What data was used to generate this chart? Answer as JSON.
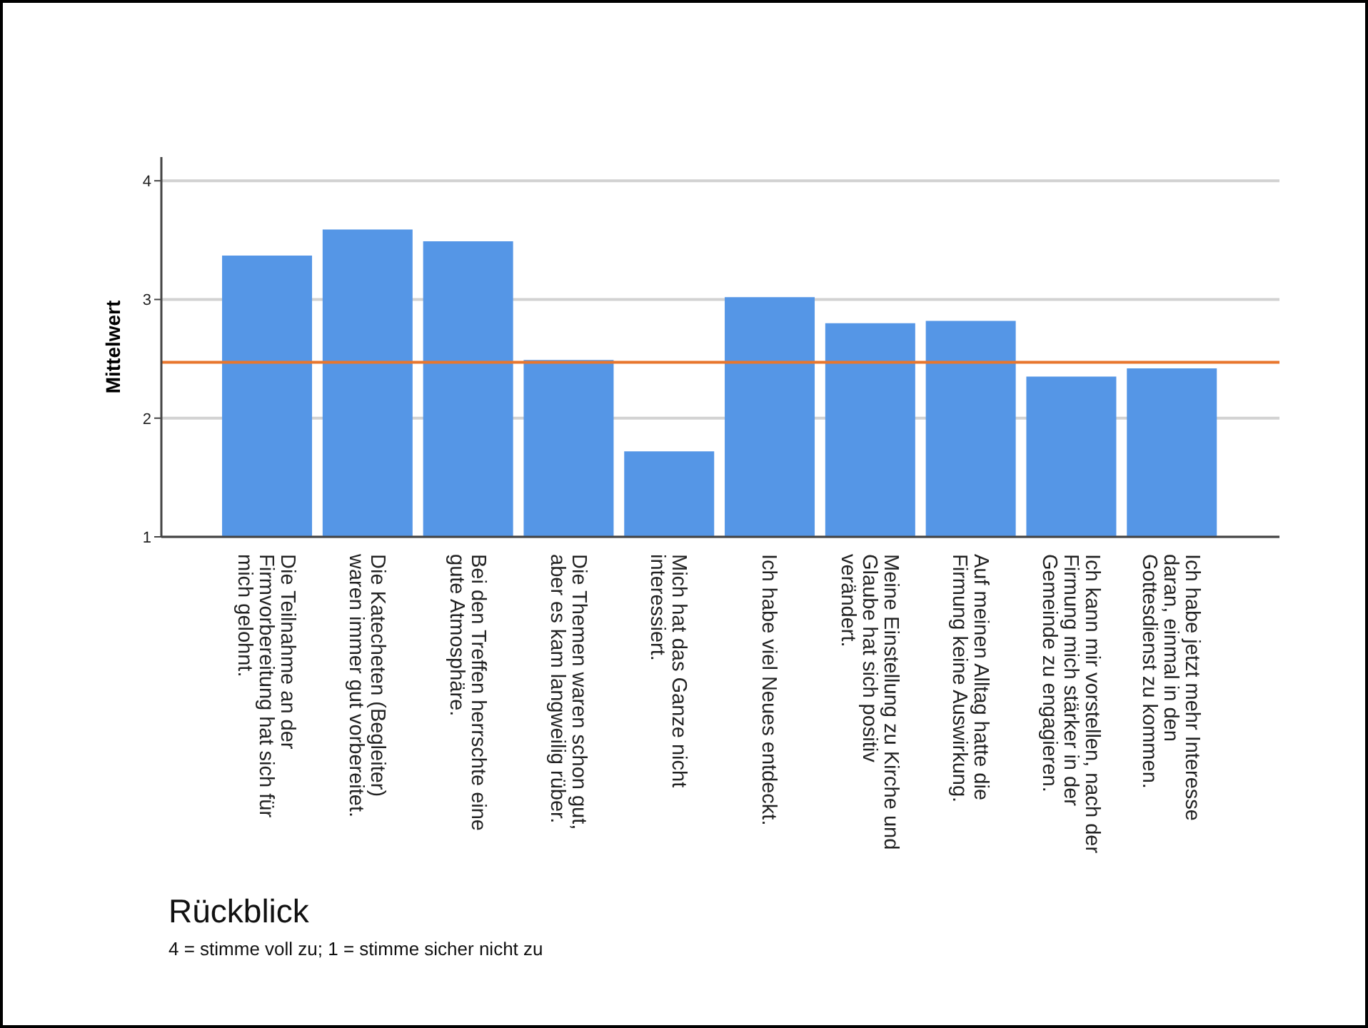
{
  "chart_data": {
    "type": "bar",
    "title": "Rückblick",
    "subtitle": "4 = stimme voll zu; 1 = stimme sicher nicht zu",
    "ylabel": "Mittelwert",
    "categories": [
      "Die Teilnahme an der Firmvorbereitung hat sich für mich gelohnt.",
      "Die Katecheten (Begleiter) waren immer gut vorbereitet.",
      "Bei den Treffen herrschte eine gute Atmosphäre.",
      "Die Themen waren schon gut, aber es kam langweilig rüber.",
      "Mich hat das Ganze nicht interessiert.",
      "Ich habe viel Neues entdeckt.",
      "Meine Einstellung zu Kirche und Glaube hat sich positiv verändert.",
      "Auf meinen Alltag hatte die Firmung keine Auswirkung.",
      "Ich kann mir vorstellen, nach der Firmung mich stärker in der Gemeinde zu engagieren.",
      "Ich habe jetzt mehr Interesse daran, einmal in den Gottesdienst zu kommen."
    ],
    "values": [
      3.37,
      3.59,
      3.49,
      2.49,
      1.72,
      3.02,
      2.8,
      2.82,
      2.35,
      2.42
    ],
    "color": "#5596e6",
    "ylim": [
      1,
      4.2
    ],
    "yticks": [
      1,
      2,
      3,
      4
    ],
    "grid": "y",
    "legend": false,
    "ref_lines": [
      {
        "axis": "y",
        "value": 2.47,
        "color": "#e8762d"
      }
    ]
  }
}
